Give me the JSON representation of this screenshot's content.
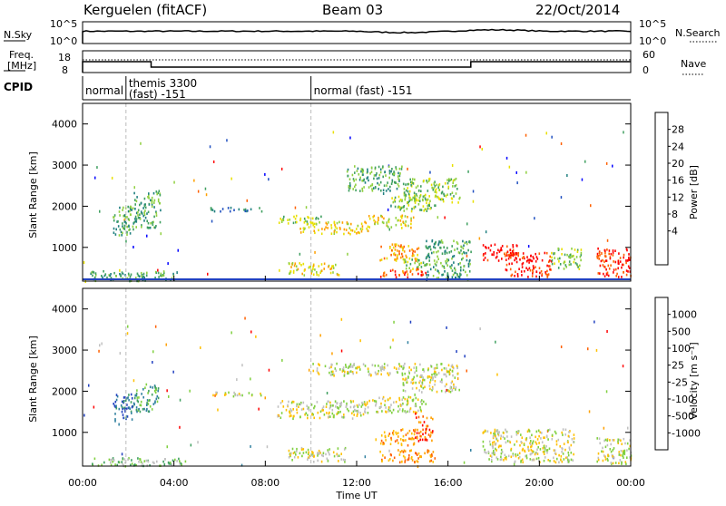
{
  "header": {
    "station": "Kerguelen (fitACF)",
    "beam": "Beam 03",
    "date": "22/Oct/2014"
  },
  "noise_panel": {
    "left_label": "N.Sky",
    "right_label": "N.Search",
    "left_ticks": [
      "10^5",
      "10^0"
    ],
    "right_ticks": [
      "10^5",
      "10^0"
    ]
  },
  "freq_panel": {
    "left_label_1": "Freq.",
    "left_label_2": "[MHz]",
    "left_ticks": [
      "18",
      "8"
    ],
    "right_label": "Nave",
    "right_ticks": [
      "60",
      "0"
    ]
  },
  "cpid_panel": {
    "label": "CPID",
    "segments": [
      {
        "text": "normal",
        "start_hour": 0
      },
      {
        "text": "themis 3300",
        "text2": "(fast) -151",
        "start_hour": 1.9
      },
      {
        "text": "normal (fast) -151",
        "start_hour": 10.0
      }
    ]
  },
  "x_axis": {
    "label": "Time UT",
    "range_hours": [
      0,
      24
    ],
    "ticks": [
      "00:00",
      "04:00",
      "08:00",
      "12:00",
      "16:00",
      "20:00",
      "00:00"
    ],
    "tick_hours": [
      0,
      4,
      8,
      12,
      16,
      20,
      24
    ]
  },
  "chart_data": [
    {
      "type": "heatmap",
      "name": "power",
      "ylabel": "Slant Range [km]",
      "ylim": [
        180,
        4500
      ],
      "yticks": [
        1000,
        2000,
        3000,
        4000
      ],
      "colorbar": {
        "label": "Power [dB]",
        "ticks": [
          "28",
          "24",
          "20",
          "16",
          "12",
          "8",
          "4"
        ],
        "colors": [
          "#ff0000",
          "#ff6000",
          "#ffa000",
          "#e8e000",
          "#90d040",
          "#40a060",
          "#208080",
          "#2050c0",
          "#0000ff"
        ]
      },
      "regions": [
        {
          "t0": 1.3,
          "t1": 2.2,
          "r0": 1300,
          "r1": 2100,
          "level": 3
        },
        {
          "t0": 2.2,
          "t1": 3.4,
          "r0": 1500,
          "r1": 2400,
          "level": 3
        },
        {
          "t0": 5.5,
          "t1": 8.0,
          "r0": 1900,
          "r1": 2000,
          "level": 2
        },
        {
          "t0": 8.5,
          "t1": 10.5,
          "r0": 1600,
          "r1": 1800,
          "level": 4
        },
        {
          "t0": 9.5,
          "t1": 12.5,
          "r0": 1350,
          "r1": 1650,
          "level": 5
        },
        {
          "t0": 12.5,
          "t1": 14.5,
          "r0": 1500,
          "r1": 1800,
          "level": 5
        },
        {
          "t0": 13.5,
          "t1": 15.5,
          "r0": 1900,
          "r1": 2300,
          "level": 4
        },
        {
          "t0": 11.5,
          "t1": 14.0,
          "r0": 2400,
          "r1": 3000,
          "level": 3
        },
        {
          "t0": 14.0,
          "t1": 16.5,
          "r0": 2100,
          "r1": 2700,
          "level": 4
        },
        {
          "t0": 13.0,
          "t1": 14.7,
          "r0": 700,
          "r1": 1100,
          "level": 6
        },
        {
          "t0": 14.0,
          "t1": 15.0,
          "r0": 500,
          "r1": 800,
          "level": 4
        },
        {
          "t0": 15.0,
          "t1": 17.0,
          "r0": 250,
          "r1": 1200,
          "level": 3
        },
        {
          "t0": 9.0,
          "t1": 11.3,
          "r0": 350,
          "r1": 650,
          "level": 5
        },
        {
          "t0": 13.0,
          "t1": 15.0,
          "r0": 300,
          "r1": 500,
          "level": 7
        },
        {
          "t0": 17.5,
          "t1": 19.0,
          "r0": 700,
          "r1": 1100,
          "level": 8
        },
        {
          "t0": 18.5,
          "t1": 20.5,
          "r0": 300,
          "r1": 900,
          "level": 8
        },
        {
          "t0": 20.5,
          "t1": 21.8,
          "r0": 500,
          "r1": 1000,
          "level": 4
        },
        {
          "t0": 22.5,
          "t1": 24.0,
          "r0": 300,
          "r1": 1000,
          "level": 8
        },
        {
          "t0": 0.3,
          "t1": 4.0,
          "r0": 200,
          "r1": 450,
          "level": 3
        }
      ]
    },
    {
      "type": "heatmap",
      "name": "velocity",
      "ylabel": "Slant Range [km]",
      "ylim": [
        180,
        4500
      ],
      "yticks": [
        1000,
        2000,
        3000,
        4000
      ],
      "colorbar": {
        "label": "Velocity [m s⁻¹]",
        "ticks": [
          "1000",
          "500",
          "100",
          "25",
          "-25",
          "-100",
          "-500",
          "-1000"
        ],
        "colors": [
          "#2040c0",
          "#3080a0",
          "#40a060",
          "#80d040",
          "#c0c0c0",
          "#ffc000",
          "#ffa000",
          "#ff6000",
          "#ff0000"
        ]
      },
      "regions": [
        {
          "t0": 1.3,
          "t1": 2.3,
          "r0": 1300,
          "r1": 2000,
          "level": 1
        },
        {
          "t0": 2.3,
          "t1": 3.3,
          "r0": 1500,
          "r1": 2200,
          "level": 2
        },
        {
          "t0": 5.5,
          "t1": 8.0,
          "r0": 1900,
          "r1": 2000,
          "level": 4
        },
        {
          "t0": 8.5,
          "t1": 12.5,
          "r0": 1350,
          "r1": 1800,
          "level": 4
        },
        {
          "t0": 12.5,
          "t1": 15.0,
          "r0": 1500,
          "r1": 1900,
          "level": 4
        },
        {
          "t0": 10.0,
          "t1": 14.0,
          "r0": 2400,
          "r1": 2700,
          "level": 4
        },
        {
          "t0": 14.0,
          "t1": 16.5,
          "r0": 2000,
          "r1": 2700,
          "level": 4
        },
        {
          "t0": 13.0,
          "t1": 14.5,
          "r0": 700,
          "r1": 1100,
          "level": 6
        },
        {
          "t0": 14.5,
          "t1": 15.3,
          "r0": 800,
          "r1": 1500,
          "level": 7
        },
        {
          "t0": 13.0,
          "t1": 15.5,
          "r0": 300,
          "r1": 600,
          "level": 6
        },
        {
          "t0": 9.0,
          "t1": 11.5,
          "r0": 300,
          "r1": 650,
          "level": 4
        },
        {
          "t0": 17.5,
          "t1": 21.5,
          "r0": 300,
          "r1": 1100,
          "level": 4
        },
        {
          "t0": 22.5,
          "t1": 24.0,
          "r0": 250,
          "r1": 900,
          "level": 4
        },
        {
          "t0": 0.3,
          "t1": 4.5,
          "r0": 200,
          "r1": 400,
          "level": 3
        }
      ]
    }
  ]
}
